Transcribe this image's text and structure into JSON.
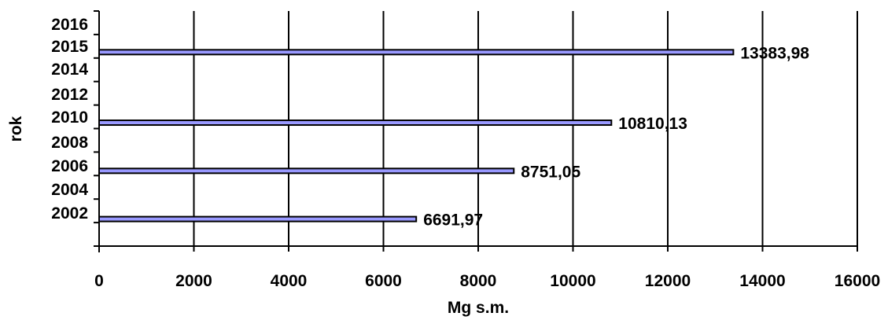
{
  "chart_data": {
    "type": "bar",
    "orientation": "horizontal",
    "xlabel": "Mg s.m.",
    "ylabel": "rok",
    "xlim": [
      0,
      16000
    ],
    "x_ticks": [
      "0",
      "2000",
      "4000",
      "6000",
      "8000",
      "10000",
      "12000",
      "14000",
      "16000"
    ],
    "y_tick_labels": [
      "2002",
      "2004",
      "2006",
      "2008",
      "2010",
      "2012",
      "2014",
      "2015",
      "2016"
    ],
    "categories": [
      "2002",
      "2006",
      "2010",
      "2015"
    ],
    "values": [
      6691.97,
      8751.05,
      10810.13,
      13383.98
    ],
    "data_labels": [
      "6691,97",
      "8751,05",
      "10810,13",
      "13383,98"
    ],
    "grid": "vertical major gridlines",
    "legend": "none",
    "colors": {
      "bar_fill": "#9999ff",
      "bar_border": "#000000",
      "grid": "#000000"
    }
  }
}
